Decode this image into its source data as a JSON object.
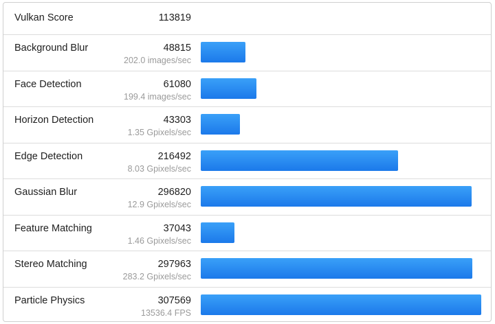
{
  "summary": {
    "label": "Vulkan Score",
    "score": "113819"
  },
  "accent_top": "#3aa0f8",
  "accent_bottom": "#1c79ea",
  "max_score": 307569,
  "tests": [
    {
      "name": "Background Blur",
      "score": 48815,
      "score_text": "48815",
      "rate": "202.0 images/sec"
    },
    {
      "name": "Face Detection",
      "score": 61080,
      "score_text": "61080",
      "rate": "199.4 images/sec"
    },
    {
      "name": "Horizon Detection",
      "score": 43303,
      "score_text": "43303",
      "rate": "1.35 Gpixels/sec"
    },
    {
      "name": "Edge Detection",
      "score": 216492,
      "score_text": "216492",
      "rate": "8.03 Gpixels/sec"
    },
    {
      "name": "Gaussian Blur",
      "score": 296820,
      "score_text": "296820",
      "rate": "12.9 Gpixels/sec"
    },
    {
      "name": "Feature Matching",
      "score": 37043,
      "score_text": "37043",
      "rate": "1.46 Gpixels/sec"
    },
    {
      "name": "Stereo Matching",
      "score": 297963,
      "score_text": "297963",
      "rate": "283.2 Gpixels/sec"
    },
    {
      "name": "Particle Physics",
      "score": 307569,
      "score_text": "307569",
      "rate": "13536.4 FPS"
    }
  ]
}
